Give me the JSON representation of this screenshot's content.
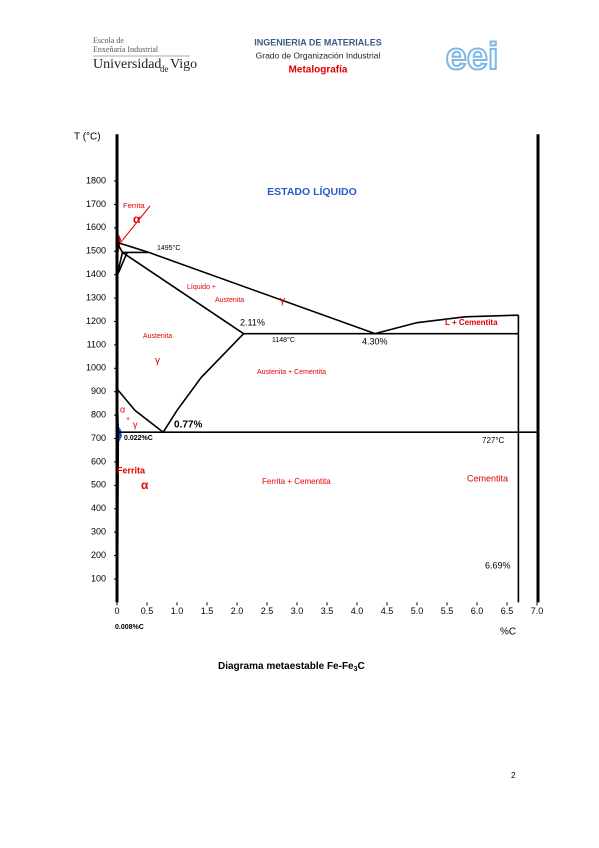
{
  "header": {
    "logo_lines": [
      "Escola de",
      "Enxeñaría Industrial",
      "Universidad",
      "de",
      "Vigo"
    ],
    "title": "INGENIERIA DE MATERIALES",
    "subtitle": "Grado de Organización Industrial",
    "section": "Metalografía",
    "right_logo": "eei"
  },
  "chart_data": {
    "type": "phase",
    "ylabel": "T (°C)",
    "xlabel": "%C",
    "xlim": [
      0,
      7
    ],
    "ylim": [
      0,
      2000
    ],
    "xticks": [
      0,
      0.5,
      {
        "value": 1,
        "label": "1.0"
      },
      1.5,
      {
        "value": 2,
        "label": "2.0"
      },
      2.5,
      {
        "value": 3,
        "label": "3.0"
      },
      3.5,
      {
        "value": 4,
        "label": "4.0"
      },
      4.5,
      {
        "value": 5,
        "label": "5.0"
      },
      5.5,
      {
        "value": 6,
        "label": "6.0"
      },
      6.5,
      {
        "value": 7,
        "label": "7.0"
      }
    ],
    "yticks": [
      100,
      200,
      300,
      400,
      500,
      600,
      700,
      800,
      900,
      1000,
      1100,
      1200,
      1300,
      1400,
      1500,
      1600,
      1700,
      1800
    ],
    "color": "#000000",
    "series": [
      {
        "x": [
          0,
          0.53,
          4.3
        ],
        "values": [
          1538,
          1495,
          1148
        ]
      },
      {
        "x": [
          4.3,
          5.0,
          5.8,
          6.69
        ],
        "values": [
          1148,
          1195,
          1220,
          1227
        ]
      },
      {
        "x": [
          0,
          0.09,
          2.11
        ],
        "values": [
          1538,
          1495,
          1148
        ]
      },
      {
        "x": [
          0.09,
          0.53
        ],
        "values": [
          1495,
          1495
        ]
      },
      {
        "x": [
          2.11,
          6.69
        ],
        "values": [
          1148,
          1148
        ]
      },
      {
        "x": [
          0,
          0.3,
          0.77
        ],
        "values": [
          912,
          820,
          727
        ]
      },
      {
        "x": [
          2.11,
          1.4,
          1.0,
          0.77
        ],
        "values": [
          1148,
          960,
          820,
          727
        ]
      },
      {
        "x": [
          0.022,
          7.0
        ],
        "values": [
          727,
          727
        ]
      },
      {
        "x": [
          6.69,
          6.69
        ],
        "values": [
          0,
          1227
        ]
      },
      {
        "x": [
          0,
          0.09
        ],
        "values": [
          1394,
          1495
        ]
      },
      {
        "x": [
          0,
          0.17
        ],
        "values": [
          1394,
          1495
        ]
      },
      {
        "x": [
          0.022,
          0.008
        ],
        "values": [
          727,
          0
        ]
      },
      {
        "x": [
          0,
          0.022
        ],
        "values": [
          912,
          727
        ]
      }
    ],
    "annotations": [
      "ESTADO LÍQUIDO",
      "Ferrita",
      "α",
      "1495°C",
      "Líquido +",
      "Austenita",
      "γ",
      "2.11%",
      "1148°C",
      "4.30%",
      "L + Cementita",
      "Austenita",
      "γ",
      "Austenita + Cementita",
      "α",
      "+",
      "γ",
      "0.77%",
      "0.022%C",
      "727°C",
      "Ferrita",
      "α",
      "Ferrita + Cementita",
      "Cementita",
      "6.69%",
      "0.008%C"
    ]
  },
  "caption": [
    "Diagrama metaestable Fe-Fe",
    "3",
    "C"
  ],
  "page_number": "2"
}
